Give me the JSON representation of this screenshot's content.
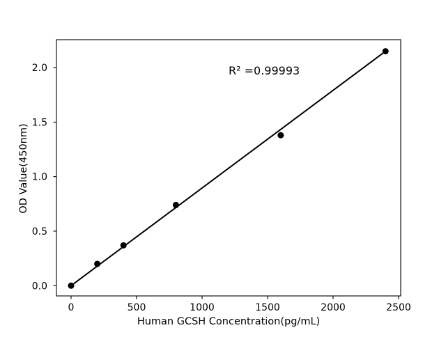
{
  "figure": {
    "background": "#ffffff"
  },
  "chart_data": {
    "type": "scatter",
    "title": "",
    "xlabel": "Human GCSH Concentration(pg/mL)",
    "ylabel": "OD Value(450nm)",
    "annotation": "R² =0.99993",
    "x": [
      0,
      200,
      400,
      800,
      1600,
      2400
    ],
    "y": [
      0.0,
      0.2,
      0.37,
      0.74,
      1.38,
      2.15
    ],
    "trendline": {
      "x": [
        0,
        2400
      ],
      "y": [
        0.0,
        2.15
      ]
    },
    "xticks": {
      "values": [
        0,
        500,
        1000,
        1500,
        2000,
        2500
      ],
      "labels": [
        "0",
        "500",
        "1000",
        "1500",
        "2000",
        "2500"
      ]
    },
    "yticks": {
      "values": [
        0.0,
        0.5,
        1.0,
        1.5,
        2.0
      ],
      "labels": [
        "0.0",
        "0.5",
        "1.0",
        "1.5",
        "2.0"
      ]
    },
    "xlim": [
      -111.7,
      2516.0
    ],
    "ylim": [
      -0.094,
      2.256
    ],
    "grid": false,
    "legend": null,
    "marker_color": "#000000",
    "line_color": "#000000",
    "spine_color": "#000000",
    "marker_radius_px": 4.5
  }
}
